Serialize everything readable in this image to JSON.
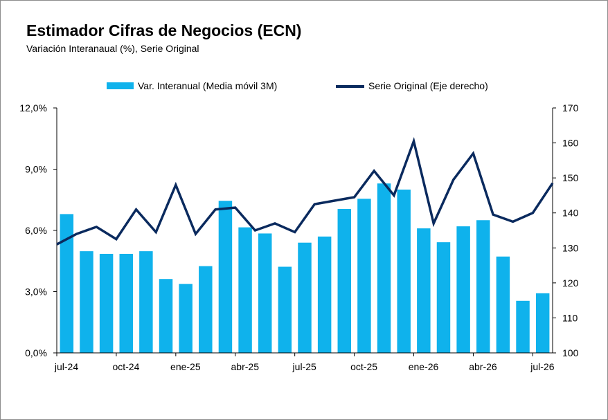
{
  "chart_data": {
    "type": "bar+line",
    "title": "Estimador Cifras de Negocios (ECN)",
    "subtitle": "Variación Interanaual  (%), Serie Original",
    "x_tick_labels": [
      "jul-24",
      "oct-24",
      "ene-25",
      "abr-25",
      "jul-25",
      "oct-25",
      "ene-26",
      "abr-26",
      "jul-26"
    ],
    "left_axis": {
      "ylim": [
        0,
        12
      ],
      "ticks": [
        "0,0%",
        "3,0%",
        "6,0%",
        "9,0%",
        "12,0%"
      ]
    },
    "right_axis": {
      "ylim": [
        100,
        170
      ],
      "ticks": [
        "100",
        "110",
        "120",
        "130",
        "140",
        "150",
        "160",
        "170"
      ]
    },
    "grid": false,
    "legend_position": "top",
    "series": [
      {
        "name": "Var. Interanual (Media móvil 3M)",
        "type": "bar",
        "axis": "left",
        "color": "#0fb2ec",
        "values": [
          6.8,
          4.98,
          4.85,
          4.85,
          4.98,
          3.62,
          3.38,
          4.25,
          7.45,
          6.15,
          5.85,
          4.22,
          5.4,
          5.7,
          7.05,
          7.55,
          8.3,
          8.0,
          6.1,
          5.42,
          6.2,
          6.5,
          4.72,
          2.55,
          2.92
        ]
      },
      {
        "name": "Serie Original (Eje derecho)",
        "type": "line",
        "axis": "right",
        "color": "#0a2a5e",
        "values": [
          131,
          134,
          136,
          132.5,
          141,
          134.5,
          148,
          134,
          141,
          141.5,
          135,
          137,
          134.5,
          142.5,
          143.5,
          144.5,
          152,
          145,
          160.5,
          137,
          149.5,
          157,
          139.5,
          137.5,
          140,
          148.5
        ]
      }
    ]
  }
}
